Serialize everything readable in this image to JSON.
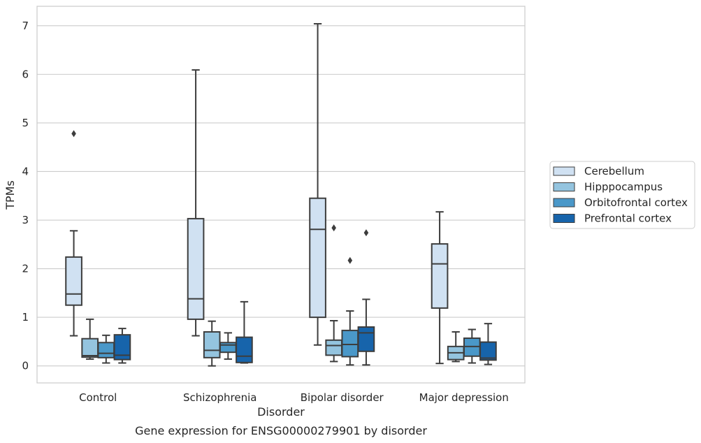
{
  "chart_data": {
    "type": "box",
    "title": "",
    "caption": "Gene expression for ENSG00000279901 by disorder",
    "xlabel": "Disorder",
    "ylabel": "TPMs",
    "ylim": [
      -0.35,
      7.4
    ],
    "yticks": [
      0,
      1,
      2,
      3,
      4,
      5,
      6,
      7
    ],
    "grid": true,
    "legend_position": "right",
    "categories": [
      "Control",
      "Schizophrenia",
      "Bipolar disorder",
      "Major depression"
    ],
    "series": [
      {
        "name": "Cerebellum",
        "color": "#d0e1f2",
        "boxes": [
          {
            "whisker_low": 0.62,
            "q1": 1.25,
            "median": 1.48,
            "q3": 2.24,
            "whisker_high": 2.78,
            "outliers": [
              4.78
            ]
          },
          {
            "whisker_low": 0.62,
            "q1": 0.96,
            "median": 1.38,
            "q3": 3.03,
            "whisker_high": 6.09,
            "outliers": []
          },
          {
            "whisker_low": 0.43,
            "q1": 1.0,
            "median": 2.81,
            "q3": 3.45,
            "whisker_high": 7.04,
            "outliers": []
          },
          {
            "whisker_low": 0.05,
            "q1": 1.19,
            "median": 2.1,
            "q3": 2.51,
            "whisker_high": 3.17,
            "outliers": []
          }
        ]
      },
      {
        "name": "Hipppocampus",
        "color": "#94c4df",
        "boxes": [
          {
            "whisker_low": 0.14,
            "q1": 0.18,
            "median": 0.21,
            "q3": 0.56,
            "whisker_high": 0.96,
            "outliers": []
          },
          {
            "whisker_low": 0.0,
            "q1": 0.17,
            "median": 0.32,
            "q3": 0.7,
            "whisker_high": 0.92,
            "outliers": []
          },
          {
            "whisker_low": 0.09,
            "q1": 0.22,
            "median": 0.42,
            "q3": 0.53,
            "whisker_high": 0.93,
            "outliers": [
              2.84
            ]
          },
          {
            "whisker_low": 0.09,
            "q1": 0.13,
            "median": 0.27,
            "q3": 0.4,
            "whisker_high": 0.7,
            "outliers": []
          }
        ]
      },
      {
        "name": "Orbitofrontal cortex",
        "color": "#4a98c9",
        "boxes": [
          {
            "whisker_low": 0.06,
            "q1": 0.17,
            "median": 0.26,
            "q3": 0.48,
            "whisker_high": 0.63,
            "outliers": []
          },
          {
            "whisker_low": 0.14,
            "q1": 0.28,
            "median": 0.43,
            "q3": 0.48,
            "whisker_high": 0.68,
            "outliers": []
          },
          {
            "whisker_low": 0.02,
            "q1": 0.19,
            "median": 0.44,
            "q3": 0.73,
            "whisker_high": 1.13,
            "outliers": [
              2.17
            ]
          },
          {
            "whisker_low": 0.06,
            "q1": 0.2,
            "median": 0.4,
            "q3": 0.57,
            "whisker_high": 0.75,
            "outliers": []
          }
        ]
      },
      {
        "name": "Prefrontal cortex",
        "color": "#1764ab",
        "boxes": [
          {
            "whisker_low": 0.06,
            "q1": 0.13,
            "median": 0.22,
            "q3": 0.64,
            "whisker_high": 0.77,
            "outliers": []
          },
          {
            "whisker_low": 0.06,
            "q1": 0.07,
            "median": 0.2,
            "q3": 0.59,
            "whisker_high": 1.32,
            "outliers": []
          },
          {
            "whisker_low": 0.02,
            "q1": 0.3,
            "median": 0.68,
            "q3": 0.8,
            "whisker_high": 1.37,
            "outliers": [
              2.74
            ]
          },
          {
            "whisker_low": 0.03,
            "q1": 0.12,
            "median": 0.16,
            "q3": 0.49,
            "whisker_high": 0.87,
            "outliers": []
          }
        ]
      }
    ]
  }
}
